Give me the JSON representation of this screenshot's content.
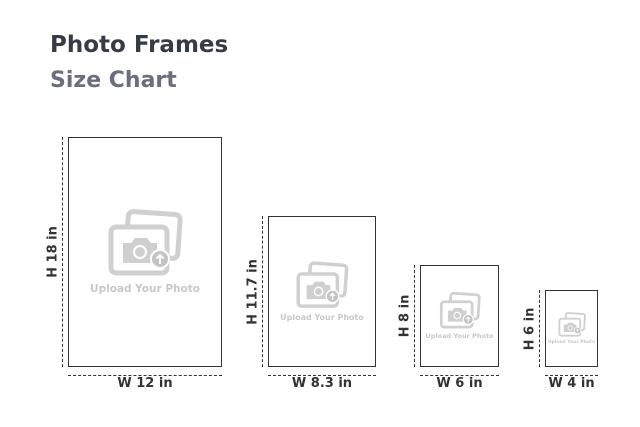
{
  "title": "Photo Frames",
  "subtitle": "Size Chart",
  "upload_label": "Upload Your Photo",
  "frames": [
    {
      "width_label": "W 12 in",
      "height_label": "H 18 in"
    },
    {
      "width_label": "W 8.3 in",
      "height_label": "H 11.7 in"
    },
    {
      "width_label": "W 6 in",
      "height_label": "H 8 in"
    },
    {
      "width_label": "W 4 in",
      "height_label": "H 6 in"
    }
  ],
  "icon": "photo-upload-icon"
}
